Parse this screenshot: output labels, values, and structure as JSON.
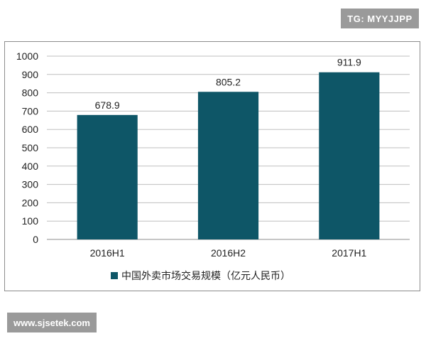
{
  "watermarks": {
    "top": "TG: MYYJJPP",
    "bottom": "www.sjsetek.com"
  },
  "chart_data": {
    "type": "bar",
    "categories": [
      "2016H1",
      "2016H2",
      "2017H1"
    ],
    "series": [
      {
        "name": "中国外卖市场交易规模（亿元人民币）",
        "values": [
          678.9,
          805.2,
          911.9
        ]
      }
    ],
    "data_labels": [
      "678.9",
      "805.2",
      "911.9"
    ],
    "y_ticks": [
      0,
      100,
      200,
      300,
      400,
      500,
      600,
      700,
      800,
      900,
      1000
    ],
    "ylim": [
      0,
      1000
    ],
    "grid": true,
    "legend_position": "bottom",
    "colors": {
      "bar": "#0e5667",
      "grid": "#bfbfbf",
      "axis": "#8c8c8c"
    }
  }
}
